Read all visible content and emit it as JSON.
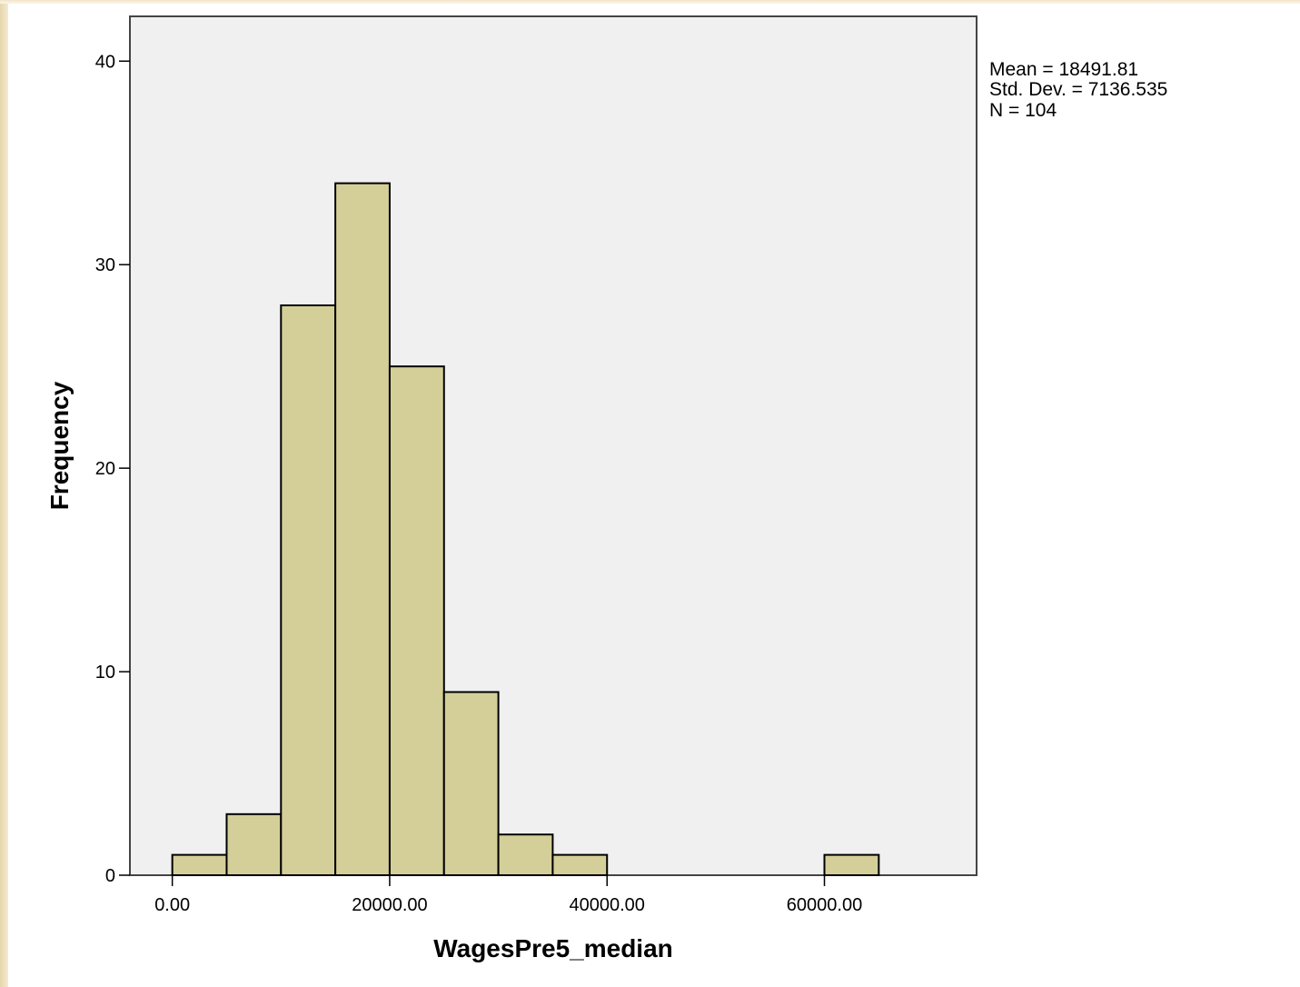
{
  "chart_data": {
    "type": "bar",
    "title": "",
    "xlabel": "WagesPre5_median",
    "ylabel": "Frequency",
    "bin_width": 5000,
    "bins": [
      {
        "start": 0,
        "end": 5000,
        "count": 1
      },
      {
        "start": 5000,
        "end": 10000,
        "count": 3
      },
      {
        "start": 10000,
        "end": 15000,
        "count": 28
      },
      {
        "start": 15000,
        "end": 20000,
        "count": 34
      },
      {
        "start": 20000,
        "end": 25000,
        "count": 25
      },
      {
        "start": 25000,
        "end": 30000,
        "count": 9
      },
      {
        "start": 30000,
        "end": 35000,
        "count": 2
      },
      {
        "start": 35000,
        "end": 40000,
        "count": 1
      },
      {
        "start": 60000,
        "end": 65000,
        "count": 1
      }
    ],
    "xlim": [
      -3900,
      74000
    ],
    "ylim": [
      0,
      42.2
    ],
    "x_ticks": [
      0,
      20000,
      40000,
      60000
    ],
    "x_tick_labels": [
      "0.00",
      "20000.00",
      "40000.00",
      "60000.00"
    ],
    "y_ticks": [
      0,
      10,
      20,
      30,
      40
    ],
    "y_tick_labels": [
      "0",
      "10",
      "20",
      "30",
      "40"
    ],
    "grid": false,
    "bar_color": "#d4cf99",
    "plot_background": "#f0f0f0",
    "stats": {
      "mean": "Mean = 18491.81",
      "std_dev": "Std. Dev. = 7136.535",
      "n": "N = 104"
    }
  }
}
